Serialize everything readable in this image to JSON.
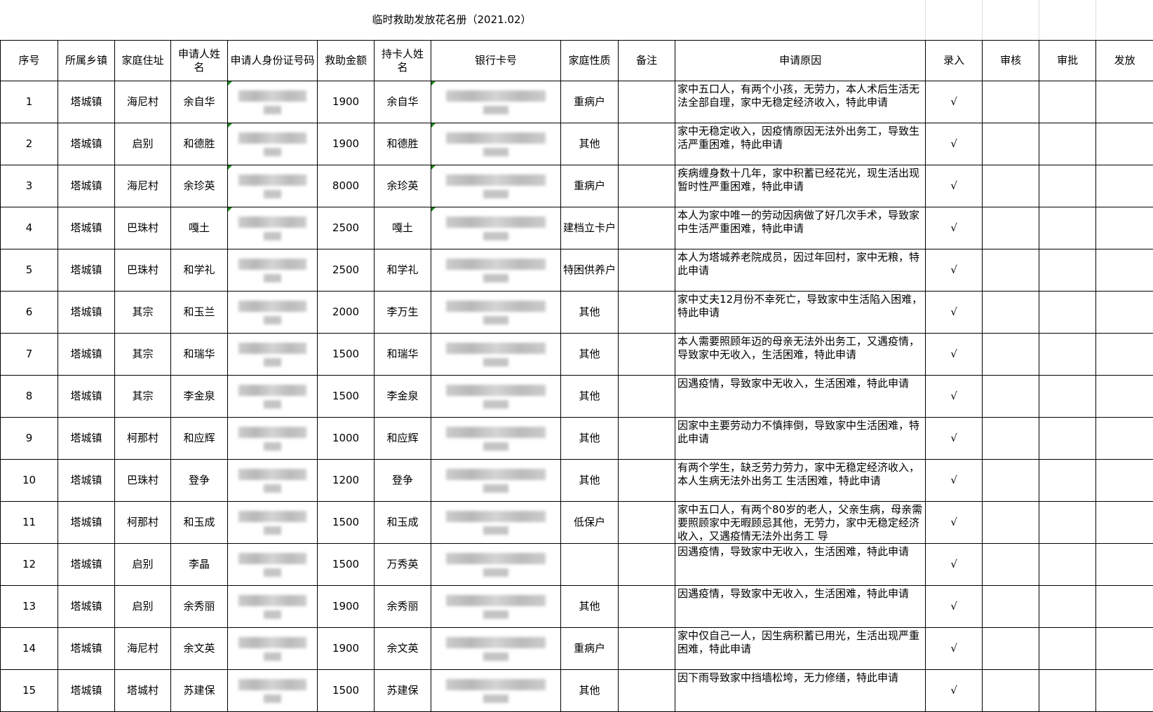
{
  "title": "临时救助发放花名册（2021.02）",
  "headers": [
    "序号",
    "所属乡镇",
    "家庭住址",
    "申请人姓名",
    "申请人身份证号码",
    "救助金额",
    "持卡人姓名",
    "银行卡号",
    "家庭性质",
    "备注",
    "申请原因",
    "录入",
    "审核",
    "审批",
    "发放"
  ],
  "rows": [
    {
      "no": "1",
      "town": "塔城镇",
      "addr": "海尼村",
      "name": "余自华",
      "amount": "1900",
      "holder": "余自华",
      "type": "重病户",
      "note": "",
      "reason": "家中五口人，有两个小孩，无劳力，本人术后生活无法全部自理，家中无稳定经济收入，特此申请",
      "entry": "√"
    },
    {
      "no": "2",
      "town": "塔城镇",
      "addr": "启别",
      "name": "和德胜",
      "amount": "1900",
      "holder": "和德胜",
      "type": "其他",
      "note": "",
      "reason": "家中无稳定收入，因疫情原因无法外出务工，导致生活严重困难，特此申请",
      "entry": "√"
    },
    {
      "no": "3",
      "town": "塔城镇",
      "addr": "海尼村",
      "name": "余珍英",
      "amount": "8000",
      "holder": "余珍英",
      "type": "重病户",
      "note": "",
      "reason": "疾病缠身数十几年，家中积蓄已经花光，现生活出现暂时性严重困难，特此申请",
      "entry": "√"
    },
    {
      "no": "4",
      "town": "塔城镇",
      "addr": "巴珠村",
      "name": "嘎土",
      "amount": "2500",
      "holder": "嘎土",
      "type": "建档立卡户",
      "note": "",
      "reason": "本人为家中唯一的劳动因病做了好几次手术，导致家中生活严重困难，特此申请",
      "entry": "√"
    },
    {
      "no": "5",
      "town": "塔城镇",
      "addr": "巴珠村",
      "name": "和学礼",
      "amount": "2500",
      "holder": "和学礼",
      "type": "特困供养户",
      "note": "",
      "reason": "本人为塔城养老院成员，因过年回村，家中无粮，特此申请",
      "entry": "√"
    },
    {
      "no": "6",
      "town": "塔城镇",
      "addr": "其宗",
      "name": "和玉兰",
      "amount": "2000",
      "holder": "李万生",
      "type": "其他",
      "note": "",
      "reason": "家中丈夫12月份不幸死亡，导致家中生活陷入困难，特此申请",
      "entry": "√"
    },
    {
      "no": "7",
      "town": "塔城镇",
      "addr": "其宗",
      "name": "和瑞华",
      "amount": "1500",
      "holder": "和瑞华",
      "type": "其他",
      "note": "",
      "reason": "本人需要照顾年迈的母亲无法外出务工，又遇疫情，导致家中无收入，生活困难，特此申请",
      "entry": "√"
    },
    {
      "no": "8",
      "town": "塔城镇",
      "addr": "其宗",
      "name": "李金泉",
      "amount": "1500",
      "holder": "李金泉",
      "type": "其他",
      "note": "",
      "reason": "因遇疫情，导致家中无收入，生活困难，特此申请",
      "entry": "√"
    },
    {
      "no": "9",
      "town": "塔城镇",
      "addr": "柯那村",
      "name": "和应辉",
      "amount": "1000",
      "holder": "和应辉",
      "type": "其他",
      "note": "",
      "reason": "因家中主要劳动力不慎摔倒，导致家中生活困难，特此申请",
      "entry": "√"
    },
    {
      "no": "10",
      "town": "塔城镇",
      "addr": "巴珠村",
      "name": "登争",
      "amount": "1200",
      "holder": "登争",
      "type": "其他",
      "note": "",
      "reason": "有两个学生，缺乏劳力劳力，家中无稳定经济收入，本人生病无法外出务工 生活困难，特此申请",
      "entry": "√"
    },
    {
      "no": "11",
      "town": "塔城镇",
      "addr": "柯那村",
      "name": "和玉成",
      "amount": "1500",
      "holder": "和玉成",
      "type": "低保户",
      "note": "",
      "reason": "家中五口人，有两个80岁的老人，父亲生病，母亲需要照顾家中无暇顾忌其他，无劳力，家中无稳定经济收入，又遇疫情无法外出务工 导",
      "entry": "√"
    },
    {
      "no": "12",
      "town": "塔城镇",
      "addr": "启别",
      "name": "李晶",
      "amount": "1500",
      "holder": "万秀英",
      "type": "",
      "note": "",
      "reason": "因遇疫情，导致家中无收入，生活困难，特此申请",
      "entry": "√"
    },
    {
      "no": "13",
      "town": "塔城镇",
      "addr": "启别",
      "name": "余秀丽",
      "amount": "1900",
      "holder": "余秀丽",
      "type": "其他",
      "note": "",
      "reason": "因遇疫情，导致家中无收入，生活困难，特此申请",
      "entry": "√"
    },
    {
      "no": "14",
      "town": "塔城镇",
      "addr": "海尼村",
      "name": "余文英",
      "amount": "1900",
      "holder": "余文英",
      "type": "重病户",
      "note": "",
      "reason": "家中仅自己一人，因生病积蓄已用光，生活出现严重困难，特此申请",
      "entry": "√"
    },
    {
      "no": "15",
      "town": "塔城镇",
      "addr": "塔城村",
      "name": "苏建保",
      "amount": "1500",
      "holder": "苏建保",
      "type": "其他",
      "note": "",
      "reason": "因下雨导致家中挡墙松垮，无力修缮，特此申请",
      "entry": "√"
    }
  ],
  "colors": {
    "grid": "#000000",
    "comment_marker": "#1a8a1a",
    "redaction": "#c4c4c4"
  }
}
